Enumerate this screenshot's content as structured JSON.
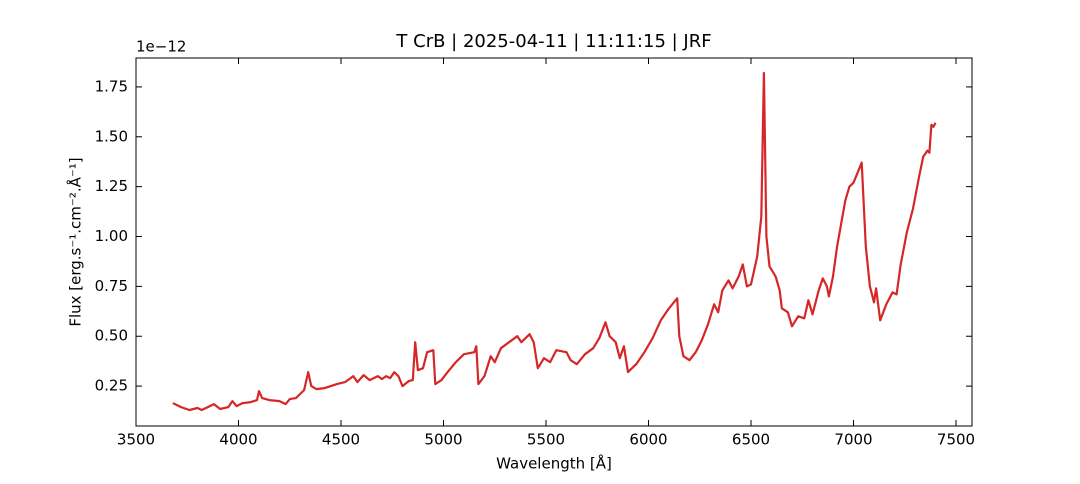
{
  "chart_data": {
    "type": "line",
    "title": "T CrB | 2025-04-11 | 11:11:15 | JRF",
    "x_label": "Wavelength [Å]",
    "y_label": "Flux [erg.s⁻¹.cm⁻².Å⁻¹]",
    "y_offset_label": "1e−12",
    "xlim": [
      3500,
      7578
    ],
    "ylim": [
      0.05,
      1.895
    ],
    "xticks": [
      3500,
      4000,
      4500,
      5000,
      5500,
      6000,
      6500,
      7000,
      7500
    ],
    "yticks": [
      0.25,
      {
        "value": 0.5,
        "label": "0.50"
      },
      0.75,
      {
        "value": 1.0,
        "label": "1.00"
      },
      1.25,
      {
        "value": 1.5,
        "label": "1.50"
      },
      1.75
    ],
    "series": [
      {
        "color": "#d62728",
        "x": [
          3680,
          3720,
          3760,
          3800,
          3820,
          3850,
          3880,
          3910,
          3950,
          3970,
          3990,
          4020,
          4060,
          4090,
          4100,
          4115,
          4150,
          4200,
          4230,
          4250,
          4280,
          4320,
          4340,
          4355,
          4380,
          4420,
          4450,
          4480,
          4520,
          4560,
          4580,
          4610,
          4640,
          4680,
          4700,
          4720,
          4740,
          4760,
          4780,
          4800,
          4830,
          4850,
          4862,
          4875,
          4900,
          4920,
          4950,
          4960,
          4990,
          5020,
          5060,
          5100,
          5150,
          5160,
          5170,
          5200,
          5230,
          5250,
          5280,
          5320,
          5360,
          5380,
          5420,
          5440,
          5460,
          5490,
          5520,
          5550,
          5600,
          5620,
          5650,
          5690,
          5730,
          5760,
          5790,
          5810,
          5840,
          5860,
          5880,
          5900,
          5940,
          5980,
          6020,
          6060,
          6100,
          6140,
          6150,
          6170,
          6200,
          6230,
          6260,
          6290,
          6320,
          6340,
          6360,
          6390,
          6410,
          6440,
          6460,
          6480,
          6500,
          6530,
          6550,
          6563,
          6575,
          6590,
          6620,
          6640,
          6650,
          6680,
          6700,
          6730,
          6760,
          6780,
          6800,
          6830,
          6850,
          6870,
          6880,
          6900,
          6920,
          6960,
          6980,
          7000,
          7040,
          7060,
          7080,
          7100,
          7110,
          7130,
          7160,
          7190,
          7210,
          7230,
          7260,
          7290,
          7320,
          7340,
          7360,
          7370,
          7380,
          7390,
          7400
        ],
        "values": [
          0.165,
          0.145,
          0.13,
          0.14,
          0.13,
          0.145,
          0.16,
          0.135,
          0.145,
          0.175,
          0.15,
          0.165,
          0.17,
          0.18,
          0.225,
          0.19,
          0.18,
          0.175,
          0.16,
          0.185,
          0.19,
          0.23,
          0.32,
          0.25,
          0.235,
          0.24,
          0.25,
          0.26,
          0.27,
          0.3,
          0.27,
          0.305,
          0.28,
          0.3,
          0.285,
          0.3,
          0.29,
          0.32,
          0.3,
          0.25,
          0.275,
          0.28,
          0.47,
          0.33,
          0.34,
          0.42,
          0.43,
          0.26,
          0.28,
          0.32,
          0.37,
          0.41,
          0.42,
          0.45,
          0.26,
          0.3,
          0.4,
          0.37,
          0.44,
          0.47,
          0.5,
          0.47,
          0.51,
          0.47,
          0.34,
          0.39,
          0.37,
          0.43,
          0.42,
          0.38,
          0.36,
          0.41,
          0.44,
          0.49,
          0.57,
          0.5,
          0.47,
          0.39,
          0.45,
          0.32,
          0.36,
          0.42,
          0.49,
          0.58,
          0.64,
          0.69,
          0.5,
          0.4,
          0.38,
          0.42,
          0.48,
          0.56,
          0.66,
          0.62,
          0.73,
          0.78,
          0.74,
          0.8,
          0.86,
          0.75,
          0.76,
          0.9,
          1.1,
          1.82,
          1.0,
          0.85,
          0.8,
          0.73,
          0.64,
          0.62,
          0.55,
          0.6,
          0.59,
          0.68,
          0.61,
          0.73,
          0.79,
          0.75,
          0.7,
          0.8,
          0.95,
          1.18,
          1.25,
          1.27,
          1.37,
          0.95,
          0.75,
          0.67,
          0.74,
          0.58,
          0.66,
          0.72,
          0.71,
          0.86,
          1.02,
          1.14,
          1.3,
          1.4,
          1.43,
          1.42,
          1.56,
          1.55,
          1.57
        ]
      }
    ]
  }
}
